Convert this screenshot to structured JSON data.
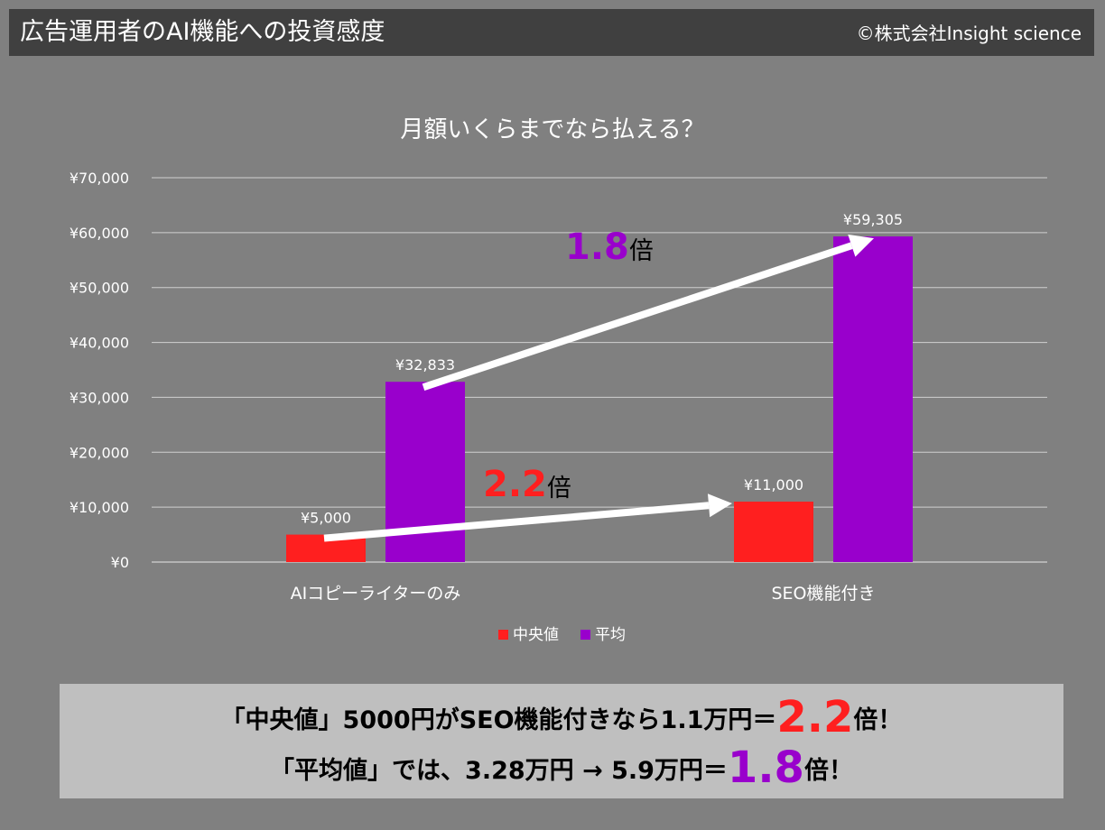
{
  "header": {
    "title": "広告運用者のAI機能への投資感度",
    "copyright": "©株式会社Insight science"
  },
  "colors": {
    "background": "#808080",
    "title_bar": "#404040",
    "median": "#ff1f1f",
    "mean": "#9900cc",
    "summary_box": "#bfbfbf"
  },
  "chart_data": {
    "type": "bar",
    "title": "月額いくらまでなら払える？",
    "categories": [
      "AIコピーライターのみ",
      "SEO機能付き"
    ],
    "series": [
      {
        "name": "中央値",
        "values": [
          5000,
          11000
        ],
        "labels": [
          "¥5,000",
          "¥11,000"
        ]
      },
      {
        "name": "平均",
        "values": [
          32833,
          59305
        ],
        "labels": [
          "¥32,833",
          "¥59,305"
        ]
      }
    ],
    "ylim": [
      0,
      70000
    ],
    "y_ticks": [
      "¥0",
      "¥10,000",
      "¥20,000",
      "¥30,000",
      "¥40,000",
      "¥50,000",
      "¥60,000",
      "¥70,000"
    ],
    "grid": true,
    "legend_position": "bottom",
    "annotations": [
      {
        "series": "平均",
        "value": "1.8",
        "suffix": "倍"
      },
      {
        "series": "中央値",
        "value": "2.2",
        "suffix": "倍"
      }
    ]
  },
  "summary": {
    "line1_text": "「中央値」5000円がSEO機能付きなら1.1万円＝",
    "line1_value": "2.2",
    "line1_suffix": "倍！",
    "line2_text": "「平均値」では、3.28万円 → 5.9万円＝",
    "line2_value": "1.8",
    "line2_suffix": "倍！"
  }
}
